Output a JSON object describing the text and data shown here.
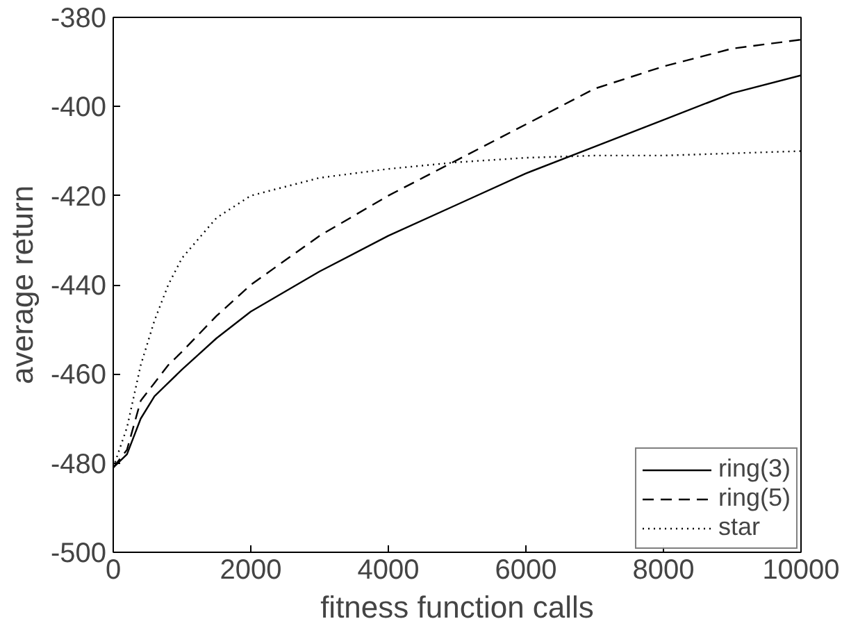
{
  "chart_data": {
    "type": "line",
    "xlabel": "fitness function calls",
    "ylabel": "average return",
    "x": [
      0,
      200,
      400,
      600,
      800,
      1000,
      1500,
      2000,
      3000,
      4000,
      5000,
      6000,
      7000,
      8000,
      9000,
      10000
    ],
    "series": [
      {
        "name": "ring(3)",
        "color": "#000000",
        "line_style": "solid",
        "values": [
          -481,
          -478,
          -470,
          -465,
          -462,
          -459,
          -452,
          -446,
          -437,
          -429,
          -422,
          -415,
          -409,
          -403,
          -397,
          -393
        ]
      },
      {
        "name": "ring(5)",
        "color": "#000000",
        "line_style": "dashed",
        "values": [
          -481,
          -477,
          -466,
          -462,
          -458,
          -455,
          -447,
          -440,
          -429,
          -420,
          -412,
          -404,
          -396,
          -391,
          -387,
          -385
        ]
      },
      {
        "name": "star",
        "color": "#000000",
        "line_style": "dotted",
        "values": [
          -481,
          -472,
          -458,
          -448,
          -440,
          -434,
          -425,
          -420,
          -416,
          -414,
          -412.5,
          -411.5,
          -411,
          -411,
          -410.5,
          -410
        ]
      }
    ],
    "xlim": [
      0,
      10000
    ],
    "xticks": [
      0,
      2000,
      4000,
      6000,
      8000,
      10000
    ],
    "ylim": [
      -500,
      -380
    ],
    "yticks": [
      -500,
      -480,
      -460,
      -440,
      -420,
      -400,
      -380
    ],
    "grid": false,
    "legend": "bottom right"
  }
}
